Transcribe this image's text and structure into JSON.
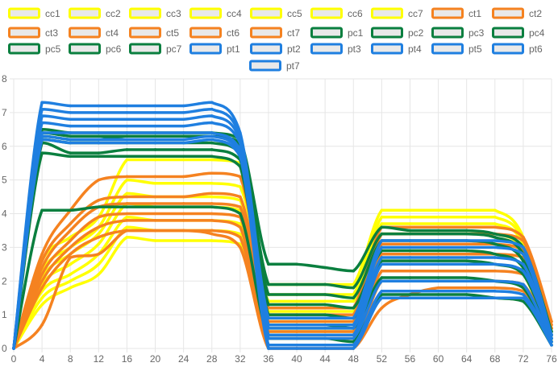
{
  "chart_data": {
    "type": "line",
    "xlim": [
      0,
      76
    ],
    "ylim": [
      0,
      8
    ],
    "x_ticks": [
      0,
      4,
      8,
      12,
      16,
      20,
      24,
      28,
      32,
      36,
      40,
      44,
      48,
      52,
      56,
      60,
      64,
      68,
      72,
      76
    ],
    "y_ticks": [
      0,
      1,
      2,
      3,
      4,
      5,
      6,
      7,
      8
    ],
    "grid": true,
    "legend_position": "top",
    "colors": {
      "cc": "#ffff00",
      "ct": "#f58220",
      "pc": "#0a7f3f",
      "pt": "#1f7fe0"
    },
    "x": [
      0,
      4,
      8,
      12,
      16,
      20,
      24,
      28,
      32,
      36,
      40,
      44,
      48,
      52,
      56,
      60,
      64,
      68,
      72,
      76
    ],
    "series": [
      {
        "name": "cc1",
        "group": "cc",
        "values": [
          0,
          2.6,
          3.3,
          3.9,
          5.6,
          5.6,
          5.6,
          5.6,
          5.5,
          1.9,
          1.9,
          1.9,
          1.9,
          4.1,
          4.1,
          4.1,
          4.1,
          4.1,
          3.3,
          0.2
        ]
      },
      {
        "name": "cc2",
        "group": "cc",
        "values": [
          0,
          2.3,
          3.0,
          3.6,
          5.0,
          4.9,
          4.9,
          4.9,
          4.8,
          1.6,
          1.6,
          1.6,
          1.6,
          3.9,
          3.9,
          3.9,
          3.9,
          3.9,
          3.2,
          0.2
        ]
      },
      {
        "name": "cc3",
        "group": "cc",
        "values": [
          0,
          2.1,
          2.8,
          3.4,
          4.6,
          4.5,
          4.5,
          4.5,
          4.4,
          1.4,
          1.4,
          1.4,
          1.4,
          3.7,
          3.7,
          3.7,
          3.7,
          3.7,
          3.1,
          0.2
        ]
      },
      {
        "name": "cc4",
        "group": "cc",
        "values": [
          0,
          1.9,
          2.5,
          3.1,
          4.3,
          4.2,
          4.2,
          4.2,
          4.1,
          1.1,
          1.1,
          1.1,
          1.1,
          3.4,
          3.4,
          3.4,
          3.4,
          3.4,
          2.9,
          0.2
        ]
      },
      {
        "name": "cc5",
        "group": "cc",
        "values": [
          0,
          1.7,
          2.2,
          2.8,
          3.9,
          3.8,
          3.8,
          3.8,
          3.7,
          0.8,
          0.8,
          0.8,
          0.8,
          3.1,
          3.1,
          3.1,
          3.1,
          3.1,
          2.6,
          0.2
        ]
      },
      {
        "name": "cc6",
        "group": "cc",
        "values": [
          0,
          1.5,
          2.0,
          2.5,
          3.6,
          3.5,
          3.5,
          3.5,
          3.4,
          0.6,
          0.6,
          0.6,
          0.6,
          2.8,
          2.8,
          2.8,
          2.8,
          2.8,
          2.4,
          0.2
        ]
      },
      {
        "name": "cc7",
        "group": "cc",
        "values": [
          0,
          1.3,
          1.8,
          2.2,
          3.3,
          3.2,
          3.2,
          3.2,
          3.1,
          0.5,
          0.5,
          0.5,
          0.5,
          2.5,
          2.5,
          2.5,
          2.5,
          2.5,
          2.2,
          0.2
        ]
      },
      {
        "name": "ct1",
        "group": "ct",
        "values": [
          0,
          2.8,
          4.1,
          5.0,
          5.1,
          5.1,
          5.1,
          5.2,
          5.1,
          1.2,
          1.2,
          1.2,
          1.2,
          3.6,
          3.6,
          3.6,
          3.6,
          3.6,
          3.3,
          0.8
        ]
      },
      {
        "name": "ct2",
        "group": "ct",
        "values": [
          0,
          2.6,
          3.7,
          4.4,
          4.5,
          4.5,
          4.5,
          4.6,
          4.5,
          1.0,
          1.0,
          1.0,
          1.0,
          3.4,
          3.4,
          3.4,
          3.4,
          3.4,
          3.2,
          0.7
        ]
      },
      {
        "name": "ct3",
        "group": "ct",
        "values": [
          0,
          2.4,
          3.5,
          4.2,
          4.3,
          4.3,
          4.3,
          4.3,
          4.2,
          0.8,
          0.8,
          0.8,
          0.8,
          3.1,
          3.1,
          3.1,
          3.1,
          3.1,
          2.9,
          0.6
        ]
      },
      {
        "name": "ct4",
        "group": "ct",
        "values": [
          0,
          2.2,
          3.2,
          3.9,
          4.0,
          4.0,
          4.0,
          4.0,
          3.9,
          0.5,
          0.5,
          0.5,
          0.5,
          2.8,
          2.8,
          2.8,
          2.8,
          2.8,
          2.7,
          0.6
        ]
      },
      {
        "name": "ct5",
        "group": "ct",
        "values": [
          0,
          2.0,
          3.0,
          3.6,
          3.8,
          3.8,
          3.8,
          3.8,
          3.6,
          0.3,
          0.3,
          0.3,
          0.3,
          2.3,
          2.3,
          2.3,
          2.3,
          2.3,
          2.2,
          0.5
        ]
      },
      {
        "name": "ct6",
        "group": "ct",
        "values": [
          0,
          1.8,
          2.8,
          3.3,
          3.5,
          3.5,
          3.5,
          3.5,
          3.3,
          0.1,
          0.1,
          0.1,
          0.1,
          2.0,
          2.0,
          2.0,
          2.0,
          2.0,
          1.9,
          0.4
        ]
      },
      {
        "name": "ct7",
        "group": "ct",
        "values": [
          0,
          0.7,
          2.7,
          2.8,
          3.5,
          3.5,
          3.5,
          3.4,
          3.0,
          0.0,
          0.0,
          0.0,
          0.0,
          1.2,
          1.6,
          1.8,
          1.8,
          1.8,
          1.7,
          0.4
        ]
      },
      {
        "name": "pc1",
        "group": "pc",
        "values": [
          0,
          6.5,
          6.4,
          6.4,
          6.4,
          6.4,
          6.4,
          6.4,
          6.2,
          2.5,
          2.5,
          2.4,
          2.3,
          3.6,
          3.5,
          3.5,
          3.5,
          3.4,
          3.0,
          0.5
        ]
      },
      {
        "name": "pc2",
        "group": "pc",
        "values": [
          0,
          6.4,
          6.3,
          6.3,
          6.3,
          6.3,
          6.3,
          6.3,
          6.1,
          1.9,
          1.9,
          1.9,
          1.8,
          3.4,
          3.4,
          3.4,
          3.4,
          3.3,
          2.8,
          0.4
        ]
      },
      {
        "name": "pc3",
        "group": "pc",
        "values": [
          0,
          6.3,
          6.2,
          6.2,
          6.3,
          6.3,
          6.3,
          6.3,
          6.0,
          1.6,
          1.6,
          1.6,
          1.5,
          3.2,
          3.2,
          3.2,
          3.2,
          3.1,
          2.6,
          0.4
        ]
      },
      {
        "name": "pc4",
        "group": "pc",
        "values": [
          0,
          6.2,
          6.1,
          6.1,
          6.1,
          6.1,
          6.1,
          6.1,
          5.8,
          1.3,
          1.3,
          1.3,
          1.2,
          2.9,
          2.9,
          2.9,
          2.9,
          2.8,
          2.4,
          0.3
        ]
      },
      {
        "name": "pc5",
        "group": "pc",
        "values": [
          0,
          6.1,
          5.8,
          5.8,
          5.9,
          5.9,
          5.9,
          5.9,
          5.6,
          1.0,
          1.0,
          1.0,
          0.9,
          2.6,
          2.6,
          2.6,
          2.6,
          2.5,
          2.2,
          0.3
        ]
      },
      {
        "name": "pc6",
        "group": "pc",
        "values": [
          0,
          5.8,
          5.7,
          5.7,
          5.7,
          5.7,
          5.7,
          5.7,
          5.4,
          0.7,
          0.7,
          0.7,
          0.6,
          2.1,
          2.1,
          2.1,
          2.1,
          2.0,
          1.8,
          0.2
        ]
      },
      {
        "name": "pc7",
        "group": "pc",
        "values": [
          0,
          4.1,
          4.1,
          4.2,
          4.2,
          4.2,
          4.2,
          4.2,
          4.0,
          0.3,
          0.3,
          0.3,
          0.2,
          1.6,
          1.6,
          1.6,
          1.6,
          1.5,
          1.4,
          0.1
        ]
      },
      {
        "name": "pt1",
        "group": "pt",
        "values": [
          0,
          7.3,
          7.2,
          7.2,
          7.2,
          7.2,
          7.2,
          7.3,
          6.4,
          0.9,
          0.9,
          0.9,
          0.9,
          3.2,
          3.2,
          3.2,
          3.2,
          3.2,
          3.0,
          0.4
        ]
      },
      {
        "name": "pt2",
        "group": "pt",
        "values": [
          0,
          7.1,
          7.0,
          7.0,
          7.0,
          7.0,
          7.0,
          7.1,
          6.3,
          0.7,
          0.7,
          0.7,
          0.7,
          3.0,
          3.0,
          3.0,
          3.0,
          3.0,
          2.8,
          0.4
        ]
      },
      {
        "name": "pt3",
        "group": "pt",
        "values": [
          0,
          6.9,
          6.8,
          6.8,
          6.8,
          6.8,
          6.8,
          6.9,
          6.2,
          0.6,
          0.6,
          0.6,
          0.6,
          2.7,
          2.7,
          2.7,
          2.7,
          2.7,
          2.5,
          0.3
        ]
      },
      {
        "name": "pt4",
        "group": "pt",
        "values": [
          0,
          6.7,
          6.6,
          6.6,
          6.6,
          6.6,
          6.6,
          6.7,
          6.1,
          0.4,
          0.4,
          0.4,
          0.4,
          2.5,
          2.5,
          2.5,
          2.5,
          2.5,
          2.3,
          0.3
        ]
      },
      {
        "name": "pt5",
        "group": "pt",
        "values": [
          0,
          6.4,
          6.4,
          6.4,
          6.4,
          6.4,
          6.4,
          6.4,
          5.9,
          0.3,
          0.3,
          0.3,
          0.3,
          2.0,
          2.0,
          2.0,
          2.0,
          2.0,
          1.9,
          0.2
        ]
      },
      {
        "name": "pt6",
        "group": "pt",
        "values": [
          0,
          6.3,
          6.2,
          6.2,
          6.2,
          6.2,
          6.2,
          6.3,
          5.8,
          0.1,
          0.1,
          0.1,
          0.1,
          1.7,
          1.7,
          1.7,
          1.7,
          1.7,
          1.6,
          0.2
        ]
      },
      {
        "name": "pt7",
        "group": "pt",
        "values": [
          0,
          6.2,
          6.1,
          6.1,
          6.1,
          6.1,
          6.1,
          6.2,
          5.7,
          0.0,
          0.0,
          0.0,
          0.0,
          1.5,
          1.5,
          1.5,
          1.5,
          1.5,
          1.5,
          0.1
        ]
      }
    ]
  }
}
